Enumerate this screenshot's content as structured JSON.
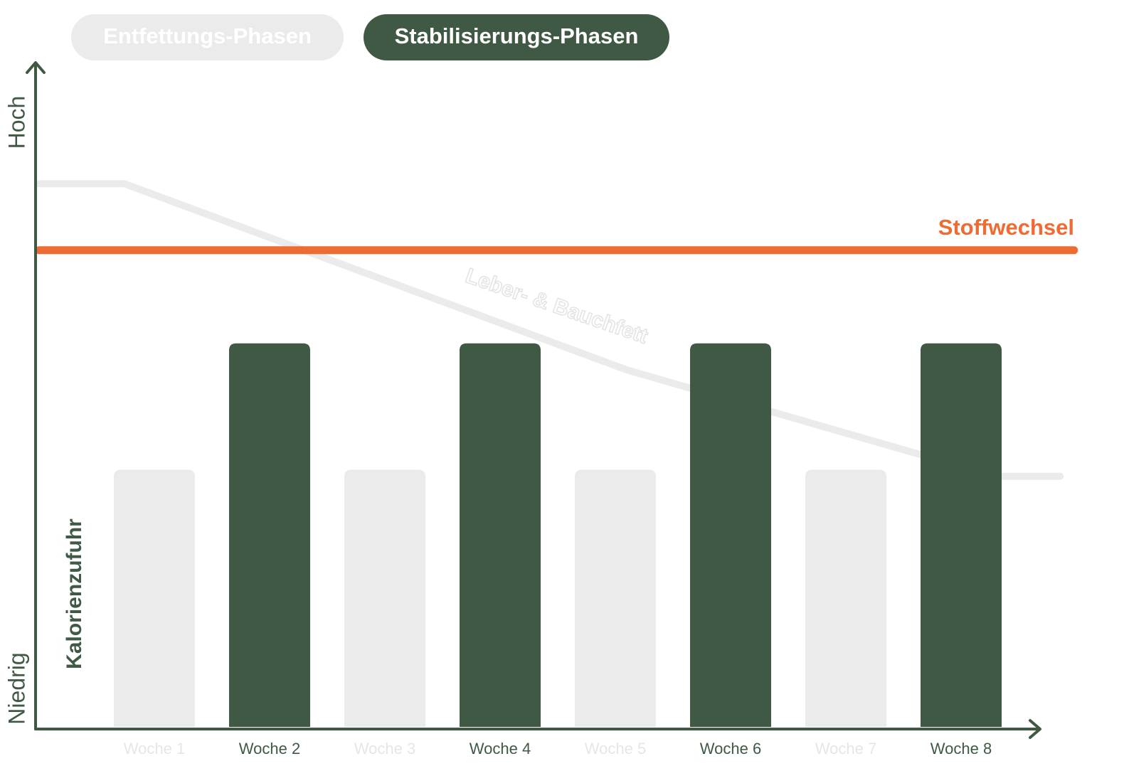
{
  "chart_data": {
    "type": "bar",
    "y_label": "Kalorienzufuhr",
    "y_high_label": "Hoch",
    "y_low_label": "Niedrig",
    "categories": [
      "Woche 1",
      "Woche 2",
      "Woche 3",
      "Woche 4",
      "Woche 5",
      "Woche 6",
      "Woche 7",
      "Woche 8"
    ],
    "xlim": [
      -0.5,
      8.5
    ],
    "ylim": [
      0,
      100
    ],
    "series": [
      {
        "name": "Entfettungs-Phasen",
        "color": "#ebebeb",
        "values": [
          39,
          null,
          39,
          null,
          39,
          null,
          39,
          null
        ]
      },
      {
        "name": "Stabilisierungs-Phasen",
        "color": "#405944",
        "values": [
          null,
          58,
          null,
          58,
          null,
          58,
          null,
          58
        ]
      }
    ],
    "lines": [
      {
        "name": "Leber- & Bauchfett",
        "color": "#ebebeb",
        "x": [
          -0.5,
          0.24,
          4.6,
          7.8,
          8.36
        ],
        "values": [
          82,
          82,
          54,
          38,
          38
        ]
      },
      {
        "name": "Stoffwechsel",
        "color": "#ee6b33",
        "x": [
          -0.5,
          8.48
        ],
        "values": [
          72,
          72
        ]
      }
    ]
  }
}
